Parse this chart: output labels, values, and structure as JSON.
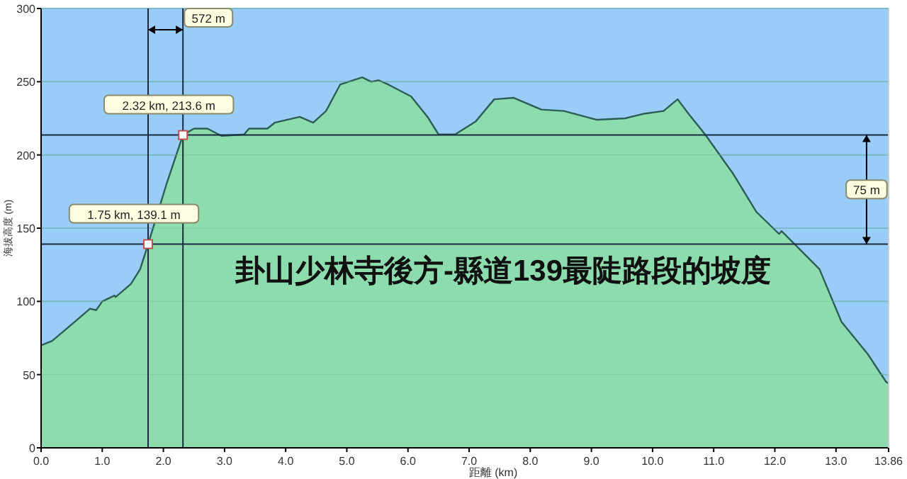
{
  "chart_data": {
    "type": "area",
    "title": "卦山少林寺後方-縣道139最陡路段的坡度",
    "xlabel": "距離 (km)",
    "ylabel": "海拔高度 (m)",
    "x": [
      0,
      0.18,
      0.52,
      0.8,
      0.9,
      1.0,
      1.2,
      1.22,
      1.47,
      1.62,
      1.75,
      2.05,
      2.32,
      2.5,
      2.72,
      2.95,
      3.32,
      3.4,
      3.7,
      3.82,
      4.23,
      4.45,
      4.66,
      4.89,
      5.25,
      5.4,
      5.52,
      5.68,
      6.05,
      6.32,
      6.5,
      6.77,
      7.11,
      7.41,
      7.73,
      8.18,
      8.55,
      9.09,
      9.55,
      9.84,
      10.18,
      10.41,
      10.59,
      10.86,
      11.32,
      11.7,
      12.07,
      12.11,
      12.73,
      13.09,
      13.52,
      13.82,
      13.86
    ],
    "series": [
      {
        "color": "#8ddcae",
        "values": [
          70,
          73,
          85,
          95,
          94,
          100,
          104,
          103,
          112,
          122,
          139.1,
          180,
          213.6,
          218,
          218,
          213,
          214,
          218,
          218,
          222,
          226,
          222,
          230,
          248,
          253,
          250,
          251,
          248,
          240,
          226,
          214,
          214,
          223,
          238,
          239,
          231,
          230,
          224,
          225,
          228,
          230,
          238,
          228,
          214,
          187,
          161,
          146,
          148,
          122,
          86,
          64,
          45,
          44
        ]
      }
    ],
    "xlim": [
      0,
      13.86
    ],
    "ylim": [
      0,
      300
    ],
    "xticks": [
      {
        "value": 0,
        "label": "0.0"
      },
      {
        "value": 1,
        "label": "1.0"
      },
      {
        "value": 2,
        "label": "2.0"
      },
      {
        "value": 3,
        "label": "3.0"
      },
      {
        "value": 4,
        "label": "4.0"
      },
      {
        "value": 5,
        "label": "5.0"
      },
      {
        "value": 6,
        "label": "6.0"
      },
      {
        "value": 7,
        "label": "7.0"
      },
      {
        "value": 8,
        "label": "8.0"
      },
      {
        "value": 9,
        "label": "9.0"
      },
      {
        "value": 10,
        "label": "10.0"
      },
      {
        "value": 11,
        "label": "11.0"
      },
      {
        "value": 12,
        "label": "12.0"
      },
      {
        "value": 13,
        "label": "13.0"
      },
      13.86
    ],
    "yticks": [
      0,
      50,
      100,
      150,
      200,
      250,
      300
    ],
    "grid": "y",
    "ref_lines": [
      {
        "axis": "x",
        "value": 1.75,
        "color": "#1a2a40"
      },
      {
        "axis": "x",
        "value": 2.32,
        "color": "#1a2a40"
      },
      {
        "axis": "y",
        "value": 139.1,
        "color": "#1a2a40"
      },
      {
        "axis": "y",
        "value": 213.6,
        "color": "#1a2a40"
      }
    ],
    "annotations": [
      {
        "text": "1.75 km, 139.1 m",
        "x": 1.75,
        "y": 139.1
      },
      {
        "text": "2.32 km, 213.6 m",
        "x": 2.32,
        "y": 213.6
      },
      "572 m",
      {
        "text": "75 m",
        "x": 13.5,
        "y": 176
      }
    ]
  }
}
